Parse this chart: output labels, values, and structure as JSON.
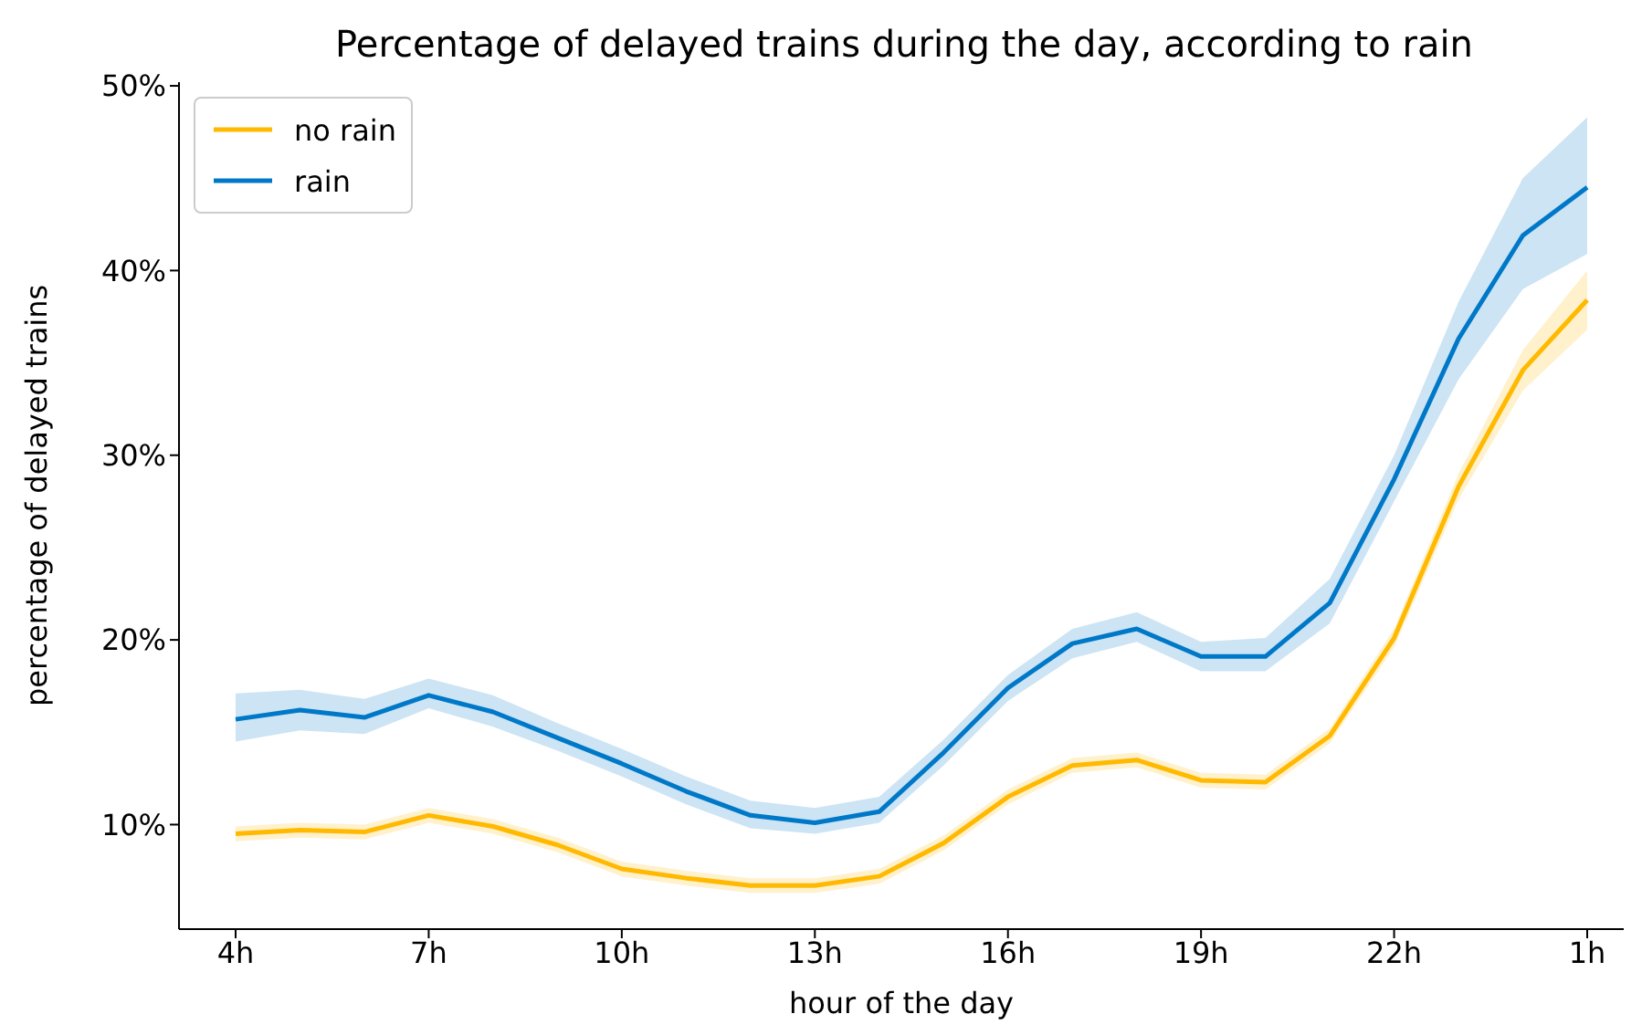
{
  "chart_data": {
    "type": "line",
    "title": "Percentage of delayed trains during the day, according to rain",
    "xlabel": "hour of the day",
    "ylabel": "percentage of delayed trains",
    "categories": [
      "4h",
      null,
      null,
      "7h",
      null,
      null,
      "10h",
      null,
      null,
      "13h",
      null,
      null,
      "16h",
      null,
      null,
      "19h",
      null,
      null,
      "22h",
      null,
      null,
      "1h"
    ],
    "series": [
      {
        "name": "no rain",
        "color": "#ffb900",
        "values": [
          9.5,
          9.7,
          9.6,
          10.5,
          9.9,
          8.9,
          7.6,
          7.1,
          6.7,
          6.7,
          7.2,
          9.0,
          11.5,
          13.2,
          13.5,
          12.4,
          12.3,
          14.8,
          20.1,
          28.3,
          34.6,
          38.4
        ],
        "lower": [
          9.1,
          9.3,
          9.2,
          10.1,
          9.5,
          8.5,
          7.2,
          6.7,
          6.3,
          6.3,
          6.8,
          8.6,
          11.1,
          12.8,
          13.1,
          12.0,
          11.9,
          14.4,
          19.6,
          27.6,
          33.5,
          36.8
        ],
        "upper": [
          9.9,
          10.1,
          10.0,
          10.9,
          10.3,
          9.3,
          8.0,
          7.5,
          7.1,
          7.1,
          7.6,
          9.4,
          11.9,
          13.6,
          13.9,
          12.8,
          12.7,
          15.2,
          20.6,
          29.0,
          35.7,
          40.0
        ]
      },
      {
        "name": "rain",
        "color": "#0078c8",
        "values": [
          15.7,
          16.2,
          15.8,
          17.0,
          16.1,
          14.7,
          13.3,
          11.8,
          10.5,
          10.1,
          10.7,
          13.9,
          17.4,
          19.8,
          20.6,
          19.1,
          19.1,
          22.0,
          28.7,
          36.3,
          41.9,
          44.5
        ],
        "lower": [
          14.5,
          15.1,
          14.9,
          16.3,
          15.3,
          14.0,
          12.6,
          11.1,
          9.8,
          9.5,
          10.1,
          13.2,
          16.7,
          19.0,
          19.9,
          18.3,
          18.3,
          20.9,
          27.5,
          34.1,
          39.0,
          40.9
        ],
        "upper": [
          17.1,
          17.3,
          16.8,
          17.9,
          17.0,
          15.5,
          14.1,
          12.6,
          11.3,
          10.9,
          11.5,
          14.6,
          18.1,
          20.6,
          21.5,
          19.9,
          20.1,
          23.3,
          30.0,
          38.3,
          45.0,
          48.3
        ]
      }
    ],
    "ylim": [
      4.34,
      50.2
    ],
    "yticks": [
      {
        "value": 10,
        "label": "10%"
      },
      {
        "value": 20,
        "label": "20%"
      },
      {
        "value": 30,
        "label": "30%"
      },
      {
        "value": 40,
        "label": "40%"
      },
      {
        "value": 50,
        "label": "50%"
      }
    ],
    "grid": false,
    "legend": "top left",
    "marker": "none",
    "line_style": "solid"
  }
}
